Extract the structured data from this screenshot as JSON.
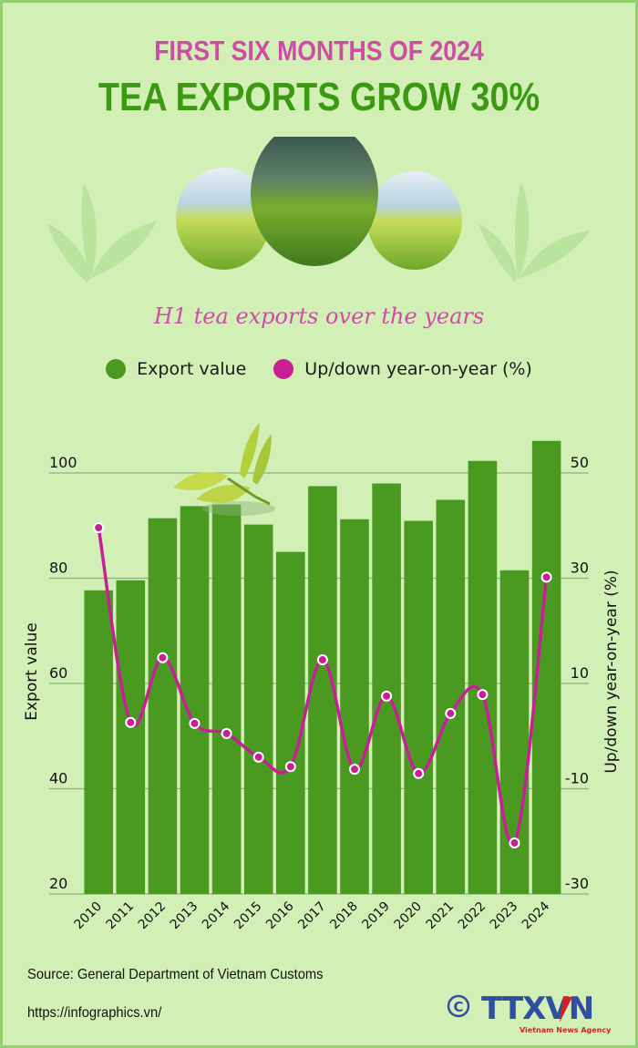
{
  "header": {
    "kicker": "FIRST SIX MONTHS OF 2024",
    "title": "TEA EXPORTS GROW 30%",
    "subtitle": "H1 tea exports over the years"
  },
  "legend": [
    {
      "label": "Export value",
      "color": "#4a9a22"
    },
    {
      "label": "Up/down year-on-year (%)",
      "color": "#c81f96"
    }
  ],
  "chart_data": {
    "type": "bar+line",
    "categories": [
      "2010",
      "2011",
      "2012",
      "2013",
      "2014",
      "2015",
      "2016",
      "2017",
      "2018",
      "2019",
      "2020",
      "2021",
      "2022",
      "2023",
      "2024"
    ],
    "series": [
      {
        "name": "Export value",
        "type": "bar",
        "axis": "left",
        "color": "#4a9a22",
        "values": [
          77.7,
          79.6,
          91.4,
          93.7,
          94.0,
          90.2,
          85.0,
          97.5,
          91.2,
          98.0,
          90.9,
          94.9,
          102.3,
          81.5,
          106.1
        ]
      },
      {
        "name": "Up/down year-on-year (%)",
        "type": "line",
        "axis": "right",
        "color": "#c81f96",
        "values": [
          39.6,
          2.6,
          14.9,
          2.4,
          0.5,
          -4.0,
          -5.8,
          14.5,
          -6.3,
          7.6,
          -7.1,
          4.3,
          7.9,
          -20.3,
          30.2
        ]
      }
    ],
    "ylabel": "Export value",
    "ylabel_right": "Up/down year-on-year (%)",
    "ylim": [
      20,
      100
    ],
    "ylim_right": [
      -30,
      50
    ],
    "yticks": [
      "20",
      "40",
      "60",
      "80",
      "100"
    ],
    "yticks_right": [
      "-30",
      "-10",
      "10",
      "30",
      "50"
    ],
    "grid": true,
    "legend_position": "top"
  },
  "footer": {
    "source": "Source: General Department of Vietnam Customs",
    "url": "https://infographics.vn/",
    "logo_text": "TTXVN",
    "logo_sub": "Vietnam News Agency",
    "copyright": "©"
  }
}
